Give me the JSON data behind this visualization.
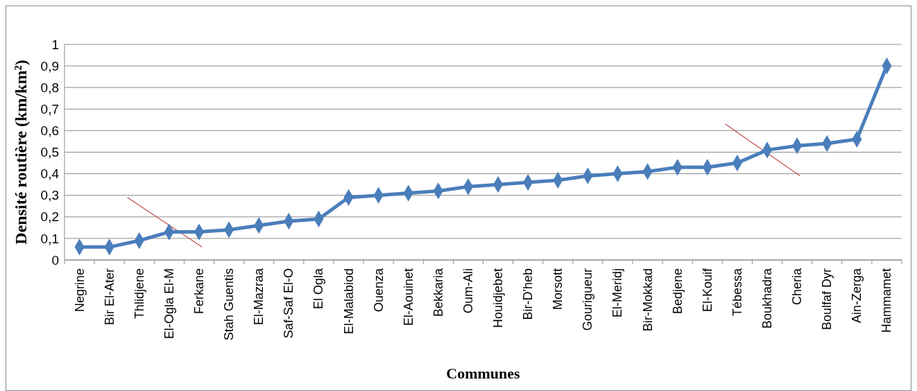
{
  "chart_data": {
    "type": "line",
    "xlabel": "Communes",
    "ylabel": "Densité routière (km/km²)",
    "categories": [
      "Negrine",
      "Bir El-Ater",
      "Thlidjene",
      "El-Ogla El-M",
      "Ferkane",
      "Stah Guentis",
      "El-Mazraa",
      "Saf-Saf El-O",
      "El Ogla",
      "El-Malabiod",
      "Ouenza",
      "El-Aouinet",
      "Bekkaria",
      "Oum-Ali",
      "Houidjebet",
      "Bir-D'heb",
      "Morsott",
      "Gourigueur",
      "El-Meridj",
      "Bir-Mokkad",
      "Bedjene",
      "El-Kouif",
      "Tébessa",
      "Boukhadra",
      "Cheria",
      "Boulfaf Dyr",
      "Ain-Zerga",
      "Hammamet"
    ],
    "series": [
      {
        "color": "#4a7ebb",
        "values": [
          0.06,
          0.06,
          0.09,
          0.13,
          0.13,
          0.14,
          0.16,
          0.18,
          0.19,
          0.29,
          0.3,
          0.31,
          0.32,
          0.34,
          0.35,
          0.36,
          0.37,
          0.39,
          0.4,
          0.41,
          0.43,
          0.43,
          0.45,
          0.51,
          0.53,
          0.54,
          0.56,
          0.9
        ]
      }
    ],
    "ylim": [
      0,
      1
    ],
    "yticks": [
      0,
      {
        "value": 0.1,
        "label": "0,1"
      },
      {
        "value": 0.2,
        "label": "0,2"
      },
      {
        "value": 0.3,
        "label": "0,3"
      },
      {
        "value": 0.4,
        "label": "0,4"
      },
      {
        "value": 0.5,
        "label": "0,5"
      },
      {
        "value": 0.6,
        "label": "0,6"
      },
      {
        "value": 0.7,
        "label": "0,7"
      },
      {
        "value": 0.8,
        "label": "0,8"
      },
      {
        "value": 0.9,
        "label": "0,9"
      },
      1
    ],
    "grid": "y",
    "marker": "diamond",
    "line_style": "solid"
  }
}
